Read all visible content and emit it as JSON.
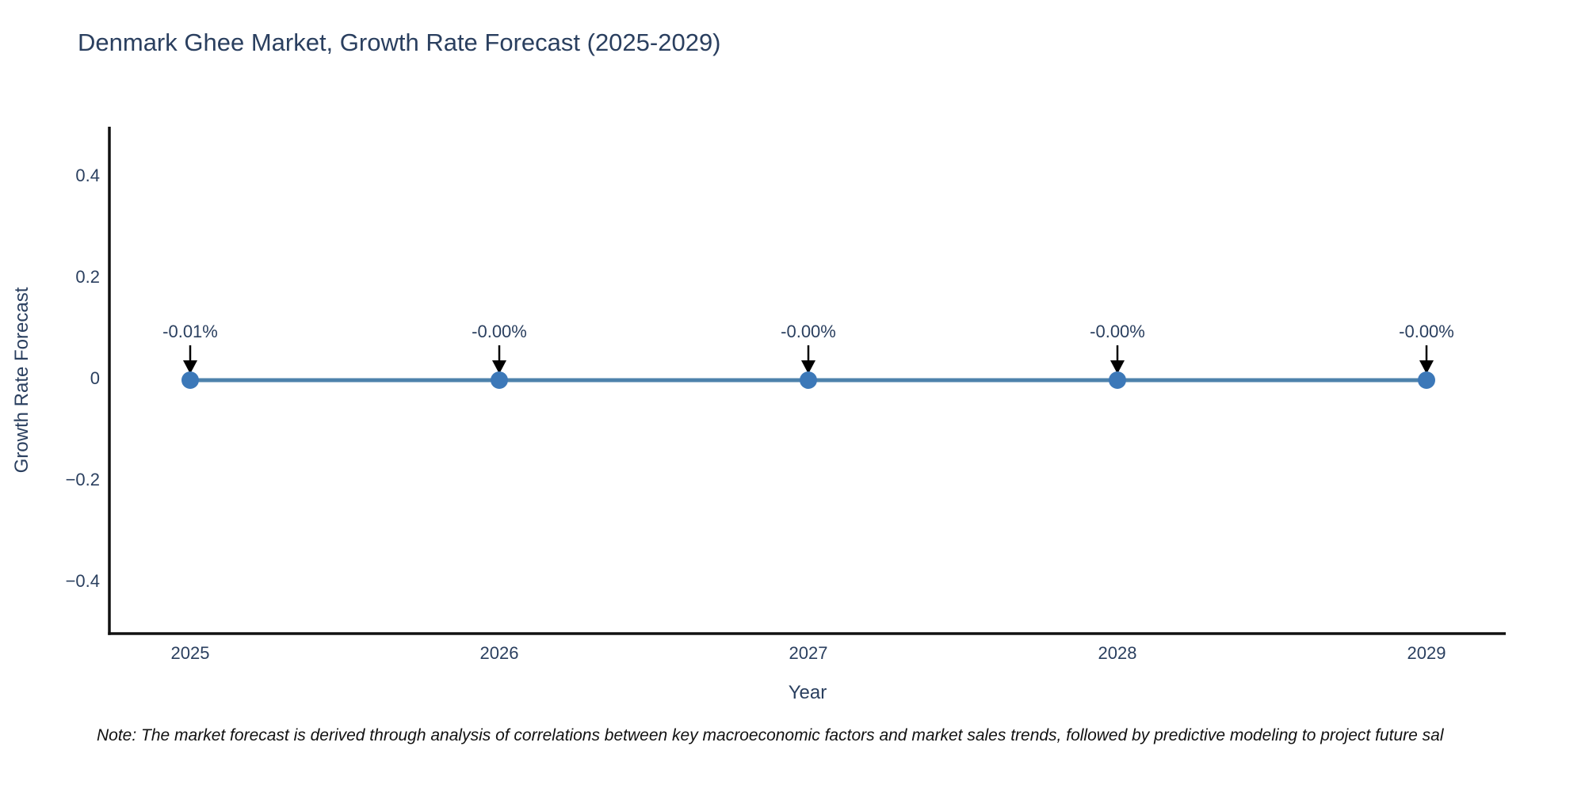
{
  "page": {
    "note": "Note: The market forecast is derived through analysis of correlations between key macroeconomic factors and market sales trends, followed by predictive modeling to project future sal"
  },
  "chart_data": {
    "type": "line",
    "title": "Denmark Ghee Market, Growth Rate Forecast (2025-2029)",
    "xlabel": "Year",
    "ylabel": "Growth Rate Forecast",
    "categories": [
      "2025",
      "2026",
      "2027",
      "2028",
      "2029"
    ],
    "series": [
      {
        "name": "Growth Rate Forecast",
        "values": [
          -0.01,
          -0.0,
          -0.0,
          -0.0,
          -0.0
        ],
        "point_labels": [
          "-0.01%",
          "-0.00%",
          "-0.00%",
          "-0.00%",
          "-0.00%"
        ]
      }
    ],
    "y_ticks": [
      "0.4",
      "0.2",
      "0",
      "−0.2",
      "−0.4"
    ],
    "y_tick_values": [
      0.4,
      0.2,
      0,
      -0.2,
      -0.4
    ],
    "ylim": [
      -0.5,
      0.5
    ],
    "grid": false,
    "legend_position": "none",
    "marker_style": "circle",
    "annotation_arrows": true,
    "colors": {
      "line": "#4d82ab",
      "marker": "#3c78b8",
      "axis": "#111111",
      "text": "#2a3f5f",
      "arrow": "#000000",
      "note_text": "#111111",
      "background": "#ffffff"
    }
  }
}
